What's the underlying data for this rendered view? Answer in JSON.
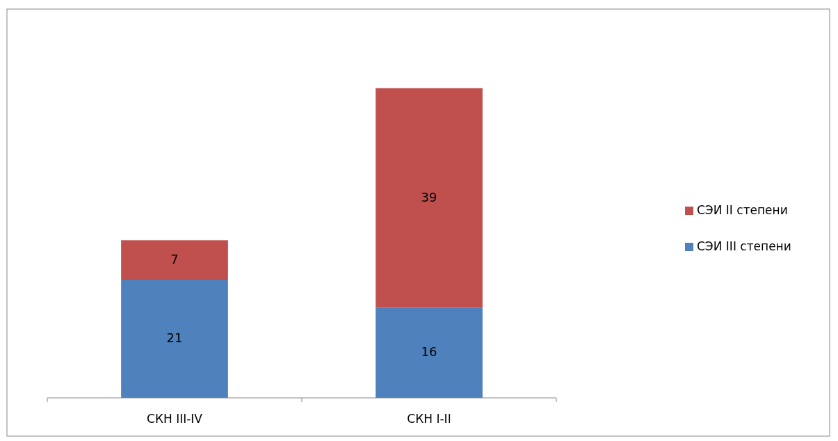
{
  "chart_data": {
    "type": "bar",
    "stacked": true,
    "categories": [
      "СКН III-IV",
      "СКН I-II"
    ],
    "series": [
      {
        "name": "СЭИ III степени",
        "color": "#4f81bd",
        "values": [
          21,
          16
        ]
      },
      {
        "name": "СЭИ II степени",
        "color": "#c0504d",
        "values": [
          7,
          39
        ]
      }
    ],
    "data_labels": true,
    "legend": "right"
  }
}
